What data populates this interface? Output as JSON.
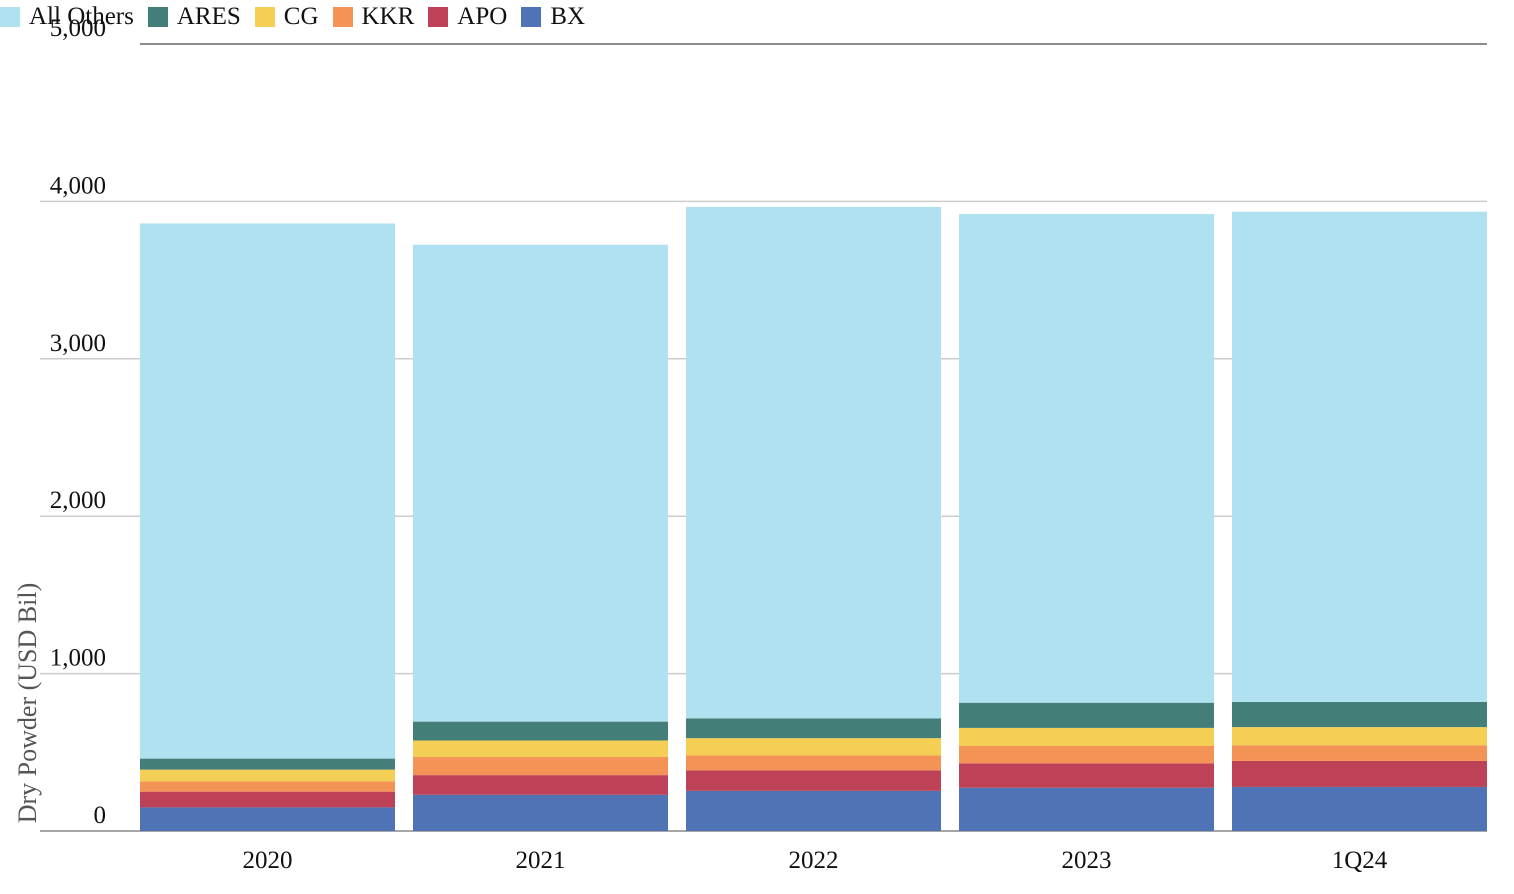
{
  "chart_data": {
    "type": "bar",
    "stacked": true,
    "title": "",
    "xlabel": "",
    "ylabel": "Dry Powder (USD Bil)",
    "ylim": [
      0,
      5000
    ],
    "yticks": [
      0,
      1000,
      2000,
      3000,
      4000,
      5000
    ],
    "ytick_labels": [
      "0",
      "1,000",
      "2,000",
      "3,000",
      "4,000",
      "5,000"
    ],
    "categories": [
      "2020",
      "2021",
      "2022",
      "2023",
      "1Q24"
    ],
    "grid": true,
    "legend_position": "top-left",
    "legend_order": [
      "All Others",
      "ARES",
      "CG",
      "KKR",
      "APO",
      "BX"
    ],
    "series": [
      {
        "name": "BX",
        "color": "#4f73b5",
        "values": [
          150,
          230,
          255,
          275,
          280
        ]
      },
      {
        "name": "APO",
        "color": "#bd4258",
        "values": [
          100,
          125,
          130,
          155,
          165
        ]
      },
      {
        "name": "KKR",
        "color": "#f39456",
        "values": [
          65,
          115,
          95,
          110,
          100
        ]
      },
      {
        "name": "CG",
        "color": "#f5cf55",
        "values": [
          75,
          105,
          110,
          115,
          115
        ]
      },
      {
        "name": "ARES",
        "color": "#447e78",
        "values": [
          70,
          120,
          125,
          160,
          160
        ]
      },
      {
        "name": "All Others",
        "color": "#b0e1f1",
        "values": [
          3400,
          3030,
          3250,
          3105,
          3115
        ]
      }
    ]
  }
}
